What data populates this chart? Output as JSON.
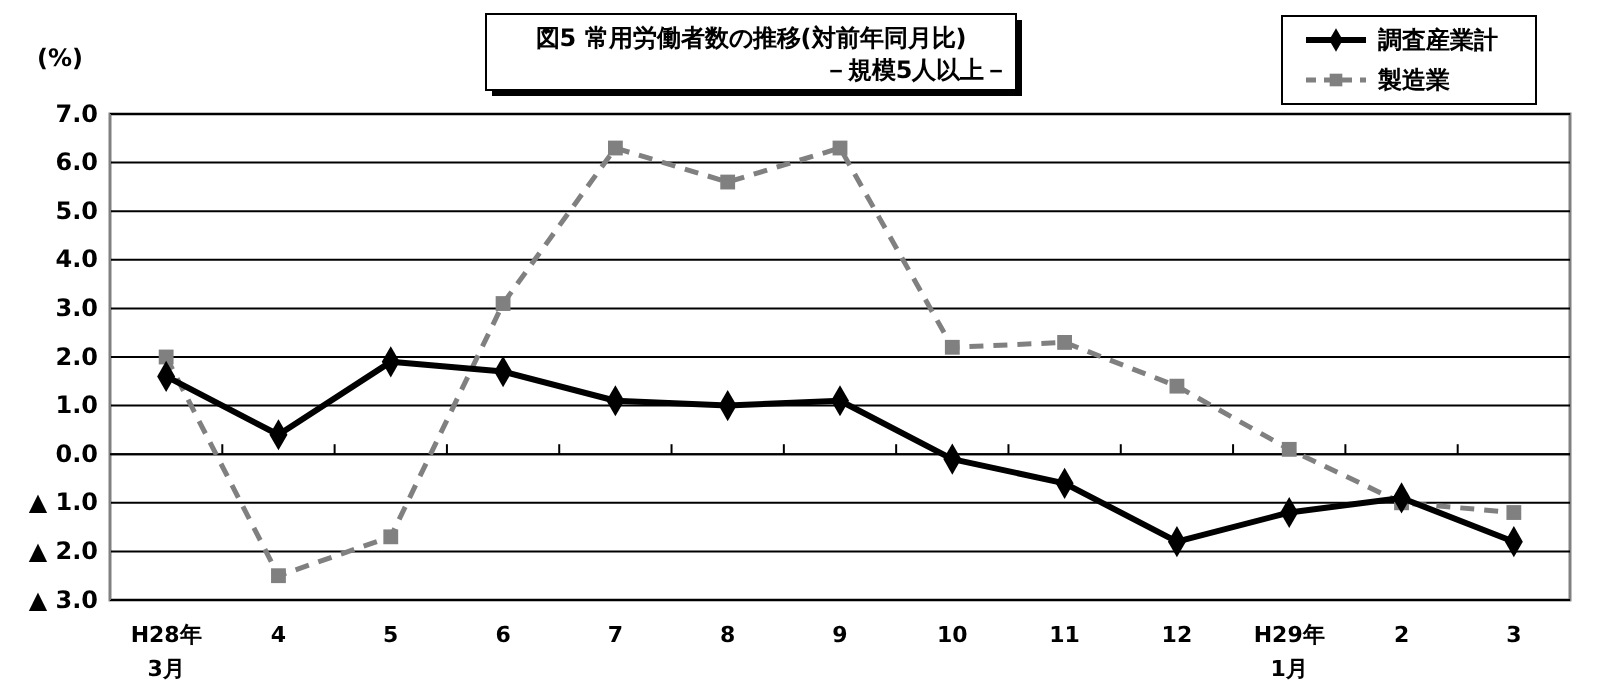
{
  "chart_data": {
    "type": "line",
    "title": "図5 常用労働者数の推移(対前年同月比)",
    "subtitle": "－規模5人以上－",
    "ylabel": "(%)",
    "categories": [
      "H28年\n3月",
      "4",
      "5",
      "6",
      "7",
      "8",
      "9",
      "10",
      "11",
      "12",
      "H29年\n1月",
      "2",
      "3"
    ],
    "series": [
      {
        "name": "調査産業計",
        "color": "#000000",
        "marker": "diamond",
        "line_style": "solid",
        "values": [
          1.6,
          0.4,
          1.9,
          1.7,
          1.1,
          1.0,
          1.1,
          -0.1,
          -0.6,
          -1.8,
          -1.2,
          -0.9,
          -1.8
        ]
      },
      {
        "name": "製造業",
        "color": "#808080",
        "marker": "square",
        "line_style": "dashed",
        "values": [
          2.0,
          -2.5,
          -1.7,
          3.1,
          6.3,
          5.6,
          6.3,
          2.2,
          2.3,
          1.4,
          0.1,
          -1.0,
          -1.2
        ]
      }
    ],
    "ylim": [
      -3,
      7
    ],
    "yticks": [
      {
        "value": 7,
        "label": "7.0"
      },
      {
        "value": 6,
        "label": "6.0"
      },
      {
        "value": 5,
        "label": "5.0"
      },
      {
        "value": 4,
        "label": "4.0"
      },
      {
        "value": 3,
        "label": "3.0"
      },
      {
        "value": 2,
        "label": "2.0"
      },
      {
        "value": 1,
        "label": "1.0"
      },
      {
        "value": 0,
        "label": "0.0"
      },
      {
        "value": -1,
        "label": "▲ 1.0"
      },
      {
        "value": -2,
        "label": "▲ 2.0"
      },
      {
        "value": -3,
        "label": "▲ 3.0"
      }
    ],
    "grid": "y",
    "legend": "top right"
  }
}
